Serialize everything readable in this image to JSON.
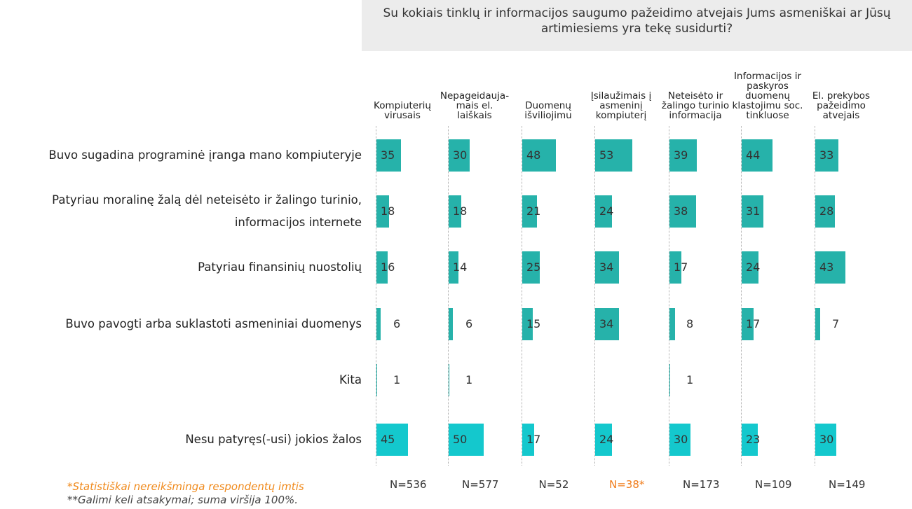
{
  "chart_data": {
    "type": "bar",
    "title": "Su kokiais tinklų ir informacijos saugumo pažeidimo atvejais Jums asmeniškai ar Jūsų\nartimiesiems yra tekę susidurti?",
    "categories": [
      "Buvo sugadina programinė įranga mano kompiuteryje",
      "Patyriau moralinę žalą dėl neteisėto ir žalingo turinio,\ninformacijos internete",
      "Patyriau finansinių nuostolių",
      "Buvo pavogti arba suklastoti asmeniniai duomenys",
      "Kita",
      "Nesu patyręs(-usi) jokios žalos"
    ],
    "category_colors": [
      "#26b2aa",
      "#26b2aa",
      "#26b2aa",
      "#26b2aa",
      "#26b2aa",
      "#14c8cd"
    ],
    "xlim": [
      0,
      100
    ],
    "series": [
      {
        "name": "Kompiuterių\nvirusais",
        "values": [
          35,
          18,
          16,
          6,
          1,
          45
        ],
        "n_label": "N=536",
        "n_color": "#333333"
      },
      {
        "name": "Nepageidauja-\nmais el. laiškais",
        "values": [
          30,
          18,
          14,
          6,
          1,
          50
        ],
        "n_label": "N=577",
        "n_color": "#333333"
      },
      {
        "name": "Duomenų\nišviliojimu",
        "values": [
          48,
          21,
          25,
          15,
          null,
          17
        ],
        "n_label": "N=52",
        "n_color": "#333333"
      },
      {
        "name": "Įsilaužimais į\nasmeninį\nkompiuterį",
        "values": [
          53,
          24,
          34,
          34,
          null,
          24
        ],
        "n_label": "N=38*",
        "n_color": "#f07c1a"
      },
      {
        "name": "Neteisėto ir\nžalingo turinio\ninformacija",
        "values": [
          39,
          38,
          17,
          8,
          1,
          30
        ],
        "n_label": "N=173",
        "n_color": "#333333"
      },
      {
        "name": "Informacijos ir\npaskyros\nduomenų\nklastojimu soc.\ntinkluose",
        "values": [
          44,
          31,
          24,
          17,
          null,
          23
        ],
        "n_label": "N=109",
        "n_color": "#333333"
      },
      {
        "name": "El. prekybos\npažeidimo\natvejais",
        "values": [
          33,
          28,
          43,
          7,
          null,
          30
        ],
        "n_label": "N=149",
        "n_color": "#333333"
      }
    ]
  },
  "footnotes": [
    "*Statistiškai nereikšminga respondentų imtis",
    "**Galimi keli atsakymai; suma viršija 100%."
  ]
}
